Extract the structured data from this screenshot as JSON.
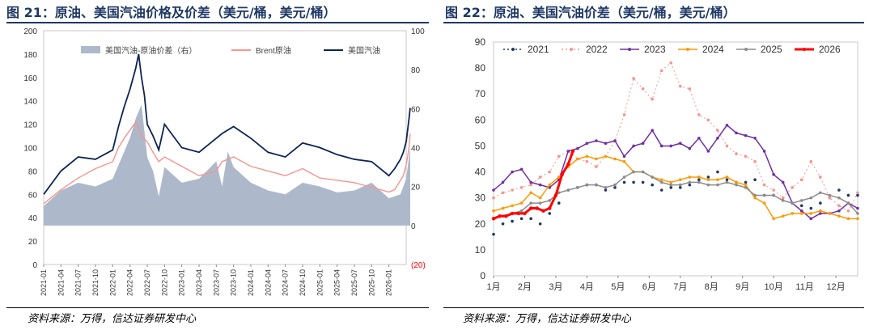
{
  "left": {
    "title": "图 21：原油、美国汽油价格及价差（美元/桶，美元/桶）",
    "source": "资料来源：万得，信达证券研发中心",
    "chart_data": {
      "type": "line",
      "left_axis": {
        "min": 0,
        "max": 200,
        "ticks": [
          "0",
          "20",
          "40",
          "60",
          "80",
          "100",
          "120",
          "140",
          "160",
          "180",
          "200"
        ]
      },
      "right_axis": {
        "min": -20,
        "max": 100,
        "ticks": [
          "(20)",
          "0",
          "20",
          "40",
          "60",
          "80",
          "100"
        ]
      },
      "x_ticks": [
        "2021-01",
        "2021-04",
        "2021-07",
        "2021-10",
        "2022-01",
        "2022-04",
        "2022-07",
        "2022-10",
        "2023-01",
        "2023-04",
        "2023-07",
        "2023-10",
        "2024-01",
        "2024-04",
        "2024-07",
        "2024-10",
        "2025-01",
        "2025-04",
        "2025-07",
        "2025-10",
        "2026-01"
      ],
      "legend": [
        "美国汽油-原油价差（右）",
        "Brent原油",
        "美国汽油"
      ],
      "series": [
        {
          "name": "美国汽油-原油价差（右）",
          "axis": "right",
          "color": "#adb9ca",
          "type": "area",
          "x": [
            0,
            3,
            6,
            9,
            12,
            14,
            15,
            16,
            17,
            18,
            19,
            20,
            21,
            24,
            27,
            30,
            31,
            32,
            33,
            36,
            39,
            42,
            45,
            48,
            51,
            54,
            57,
            60,
            62,
            63,
            63.7
          ],
          "values": [
            10,
            18,
            22,
            20,
            24,
            38,
            45,
            55,
            62,
            35,
            28,
            15,
            30,
            22,
            24,
            33,
            20,
            38,
            30,
            22,
            18,
            16,
            22,
            20,
            17,
            18,
            22,
            14,
            16,
            24,
            40
          ]
        },
        {
          "name": "Brent原油",
          "axis": "left",
          "color": "#f4958e",
          "type": "line",
          "x": [
            0,
            3,
            6,
            9,
            12,
            13,
            14,
            15,
            16,
            17,
            18,
            19,
            20,
            21,
            24,
            27,
            30,
            31,
            33,
            36,
            39,
            42,
            45,
            48,
            51,
            54,
            57,
            60,
            61,
            62,
            62.5,
            63,
            63.5,
            63.7
          ],
          "values": [
            52,
            64,
            74,
            82,
            88,
            100,
            108,
            115,
            122,
            110,
            105,
            96,
            88,
            92,
            84,
            76,
            80,
            88,
            92,
            84,
            80,
            76,
            82,
            74,
            72,
            70,
            66,
            62,
            64,
            72,
            76,
            85,
            100,
            112
          ]
        },
        {
          "name": "美国汽油",
          "axis": "left",
          "color": "#0e2454",
          "type": "line",
          "x": [
            0,
            3,
            6,
            9,
            12,
            13,
            14,
            15,
            16,
            16.5,
            17,
            17.5,
            18,
            19,
            20,
            21,
            24,
            27,
            30,
            31,
            33,
            36,
            39,
            42,
            45,
            48,
            51,
            54,
            57,
            60,
            61,
            62,
            62.5,
            63,
            63.5,
            63.7
          ],
          "values": [
            60,
            80,
            92,
            90,
            98,
            118,
            135,
            150,
            168,
            180,
            160,
            145,
            120,
            110,
            98,
            120,
            100,
            96,
            108,
            112,
            118,
            108,
            96,
            92,
            104,
            100,
            94,
            90,
            88,
            76,
            82,
            90,
            96,
            105,
            125,
            134
          ]
        }
      ]
    }
  },
  "right": {
    "title": "图 22：原油、美国汽油价差（美元/桶，美元/桶）",
    "source": "资料来源：万得，信达证券研发中心",
    "chart_data": {
      "type": "line",
      "y_axis": {
        "min": 0,
        "max": 90,
        "ticks": [
          "0",
          "10",
          "20",
          "30",
          "40",
          "50",
          "60",
          "70",
          "80",
          "90"
        ]
      },
      "x_ticks": [
        "1月",
        "2月",
        "3月",
        "4月",
        "5月",
        "6月",
        "7月",
        "8月",
        "9月",
        "10月",
        "11月",
        "12月"
      ],
      "series": [
        {
          "name": "2021",
          "color": "#1f3864",
          "style": "dots",
          "x": [
            0,
            0.3,
            0.6,
            0.9,
            1.2,
            1.5,
            1.8,
            2.1,
            2.4,
            2.7,
            3.0,
            3.3,
            3.6,
            3.9,
            4.2,
            4.5,
            4.8,
            5.1,
            5.4,
            5.7,
            6.0,
            6.3,
            6.6,
            6.9,
            7.2,
            7.5,
            7.8,
            8.1,
            8.4,
            8.7,
            9.0,
            9.3,
            9.6,
            9.9,
            10.2,
            10.5,
            10.8,
            11.1,
            11.4,
            11.7
          ],
          "values": [
            16,
            20,
            21,
            22,
            22,
            20,
            24,
            28,
            33,
            34,
            35,
            35,
            33,
            34,
            36,
            36,
            36,
            35,
            33,
            34,
            34,
            35,
            37,
            38,
            40,
            37,
            36,
            36,
            37,
            31,
            31,
            30,
            28,
            27,
            26,
            28,
            30,
            33,
            31,
            31
          ]
        },
        {
          "name": "2022",
          "color": "#f4958e",
          "style": "dashed",
          "x": [
            0,
            0.3,
            0.6,
            0.9,
            1.2,
            1.5,
            1.8,
            2.1,
            2.4,
            2.7,
            3.0,
            3.3,
            3.6,
            3.9,
            4.2,
            4.5,
            4.8,
            5.1,
            5.4,
            5.7,
            6.0,
            6.3,
            6.6,
            6.9,
            7.2,
            7.5,
            7.8,
            8.1,
            8.4,
            8.7,
            9.0,
            9.3,
            9.6,
            9.9,
            10.2,
            10.5,
            10.8,
            11.1,
            11.4,
            11.7
          ],
          "values": [
            30,
            32,
            33,
            34,
            35,
            38,
            40,
            46,
            48,
            45,
            44,
            42,
            46,
            52,
            62,
            76,
            72,
            68,
            79,
            82,
            73,
            72,
            62,
            60,
            56,
            50,
            47,
            46,
            44,
            35,
            33,
            30,
            34,
            37,
            44,
            38,
            30,
            27,
            25,
            32
          ]
        },
        {
          "name": "2023",
          "color": "#7030a0",
          "style": "solid",
          "x": [
            0,
            0.3,
            0.6,
            0.9,
            1.2,
            1.5,
            1.8,
            2.1,
            2.4,
            2.7,
            3.0,
            3.3,
            3.6,
            3.9,
            4.2,
            4.5,
            4.8,
            5.1,
            5.4,
            5.7,
            6.0,
            6.3,
            6.6,
            6.9,
            7.2,
            7.5,
            7.8,
            8.1,
            8.4,
            8.7,
            9.0,
            9.3,
            9.6,
            9.9,
            10.2,
            10.5,
            10.8,
            11.1,
            11.4,
            11.7
          ],
          "values": [
            33,
            36,
            40,
            41,
            36,
            35,
            34,
            37,
            48,
            49,
            51,
            52,
            51,
            52,
            46,
            50,
            51,
            56,
            50,
            50,
            51,
            49,
            53,
            48,
            53,
            58,
            55,
            54,
            53,
            48,
            39,
            36,
            28,
            25,
            22,
            24,
            24,
            25,
            28,
            26
          ]
        },
        {
          "name": "2024",
          "color": "#ff9900",
          "style": "solid",
          "x": [
            0,
            0.3,
            0.6,
            0.9,
            1.2,
            1.5,
            1.8,
            2.1,
            2.4,
            2.7,
            3.0,
            3.3,
            3.6,
            3.9,
            4.2,
            4.5,
            4.8,
            5.1,
            5.4,
            5.7,
            6.0,
            6.3,
            6.6,
            6.9,
            7.2,
            7.5,
            7.8,
            8.1,
            8.4,
            8.7,
            9.0,
            9.3,
            9.6,
            9.9,
            10.2,
            10.5,
            10.8,
            11.1,
            11.4,
            11.7
          ],
          "values": [
            25,
            26,
            27,
            28,
            32,
            30,
            35,
            38,
            42,
            45,
            46,
            45,
            46,
            45,
            44,
            40,
            40,
            38,
            37,
            36,
            37,
            38,
            38,
            37,
            37,
            38,
            36,
            35,
            30,
            28,
            22,
            23,
            24,
            24,
            24,
            25,
            24,
            23,
            22,
            22
          ]
        },
        {
          "name": "2025",
          "color": "#8c8c8c",
          "style": "solid",
          "x": [
            0,
            0.3,
            0.6,
            0.9,
            1.2,
            1.5,
            1.8,
            2.1,
            2.4,
            2.7,
            3.0,
            3.3,
            3.6,
            3.9,
            4.2,
            4.5,
            4.8,
            5.1,
            5.4,
            5.7,
            6.0,
            6.3,
            6.6,
            6.9,
            7.2,
            7.5,
            7.8,
            8.1,
            8.4,
            8.7,
            9.0,
            9.3,
            9.6,
            9.9,
            10.2,
            10.5,
            10.8,
            11.1,
            11.4,
            11.7
          ],
          "values": [
            22,
            23,
            24,
            25,
            28,
            28,
            29,
            32,
            33,
            34,
            35,
            35,
            34,
            35,
            38,
            40,
            40,
            38,
            36,
            35,
            35,
            36,
            36,
            35,
            35,
            36,
            35,
            34,
            31,
            31,
            31,
            29,
            28,
            29,
            30,
            32,
            31,
            30,
            28,
            24
          ]
        },
        {
          "name": "2026",
          "color": "#ff0000",
          "style": "bold",
          "x": [
            0,
            0.2,
            0.4,
            0.6,
            0.8,
            1.0,
            1.2,
            1.4,
            1.6,
            1.8,
            2.0,
            2.2,
            2.4,
            2.55
          ],
          "values": [
            22,
            23,
            23,
            24,
            24,
            24,
            26,
            26,
            25,
            26,
            31,
            39,
            43,
            48
          ]
        }
      ]
    }
  }
}
